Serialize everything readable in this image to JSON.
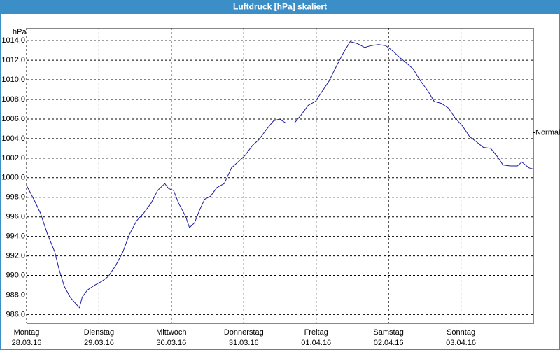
{
  "chart_data": {
    "type": "line",
    "title": "Luftdruck [hPa] skaliert",
    "ylabel": "hPa",
    "xlim": [
      0,
      7
    ],
    "ylim": [
      985.1,
      1015.3
    ],
    "yticks": [
      {
        "value": 986,
        "label": "986,0"
      },
      {
        "value": 988,
        "label": "988,0"
      },
      {
        "value": 990,
        "label": "990,0"
      },
      {
        "value": 992,
        "label": "992,0"
      },
      {
        "value": 994,
        "label": "994,0"
      },
      {
        "value": 996,
        "label": "996,0"
      },
      {
        "value": 998,
        "label": "998,0"
      },
      {
        "value": 1000,
        "label": "1000,0"
      },
      {
        "value": 1002,
        "label": "1002,0"
      },
      {
        "value": 1004,
        "label": "1004,0"
      },
      {
        "value": 1006,
        "label": "1006,0"
      },
      {
        "value": 1008,
        "label": "1008,0"
      },
      {
        "value": 1010,
        "label": "1010,0"
      },
      {
        "value": 1012,
        "label": "1012,0"
      },
      {
        "value": 1014,
        "label": "1014,0"
      }
    ],
    "xticks": [
      {
        "value": 0,
        "label": "Montag",
        "sublabel": "28.03.16"
      },
      {
        "value": 1,
        "label": "Dienstag",
        "sublabel": "29.03.16"
      },
      {
        "value": 2,
        "label": "Mittwoch",
        "sublabel": "30.03.16"
      },
      {
        "value": 3,
        "label": "Donnerstag",
        "sublabel": "31.03.16"
      },
      {
        "value": 4,
        "label": "Freitag",
        "sublabel": "01.04.16"
      },
      {
        "value": 5,
        "label": "Samstag",
        "sublabel": "02.04.16"
      },
      {
        "value": 6,
        "label": "Sonntag",
        "sublabel": "03.04.16"
      }
    ],
    "grid": true,
    "annotations": [
      {
        "value": 1004.6,
        "label": "Normal"
      }
    ],
    "series": [
      {
        "color": "#1a1aa0",
        "x": [
          0,
          0.1,
          0.19,
          0.29,
          0.39,
          0.45,
          0.52,
          0.6,
          0.68,
          0.73,
          0.77,
          0.84,
          0.94,
          1.04,
          1.13,
          1.23,
          1.33,
          1.42,
          1.52,
          1.62,
          1.72,
          1.81,
          1.91,
          1.96,
          2.03,
          2.1,
          2.2,
          2.25,
          2.32,
          2.39,
          2.46,
          2.54,
          2.63,
          2.73,
          2.83,
          2.92,
          3.02,
          3.12,
          3.21,
          3.31,
          3.41,
          3.49,
          3.58,
          3.7,
          3.79,
          3.89,
          3.99,
          4.09,
          4.18,
          4.28,
          4.38,
          4.47,
          4.57,
          4.67,
          4.76,
          4.86,
          4.96,
          5.05,
          5.15,
          5.25,
          5.34,
          5.44,
          5.54,
          5.63,
          5.73,
          5.83,
          5.92,
          6.02,
          6.12,
          6.21,
          6.31,
          6.41,
          6.51,
          6.58,
          6.68,
          6.78,
          6.84,
          6.94,
          6.99
        ],
        "values": [
          999.2,
          997.8,
          996.4,
          994.2,
          992.4,
          990.6,
          988.9,
          987.8,
          987.1,
          986.7,
          987.8,
          988.5,
          989.0,
          989.4,
          989.9,
          991.0,
          992.4,
          994.2,
          995.6,
          996.4,
          997.4,
          998.7,
          999.4,
          998.9,
          998.7,
          997.4,
          996.0,
          994.9,
          995.4,
          996.7,
          997.8,
          998.1,
          999.0,
          999.4,
          1001.0,
          1001.6,
          1002.3,
          1003.3,
          1003.9,
          1004.9,
          1005.8,
          1006.0,
          1005.6,
          1005.6,
          1006.4,
          1007.4,
          1007.8,
          1008.9,
          1009.9,
          1011.4,
          1012.8,
          1013.9,
          1013.7,
          1013.3,
          1013.5,
          1013.6,
          1013.5,
          1013.0,
          1012.3,
          1011.7,
          1011.1,
          1009.9,
          1008.9,
          1007.8,
          1007.6,
          1007.1,
          1006.1,
          1005.3,
          1004.2,
          1003.7,
          1003.1,
          1003.0,
          1002.1,
          1001.3,
          1001.2,
          1001.2,
          1001.6,
          1001.0,
          1000.9
        ]
      }
    ]
  }
}
